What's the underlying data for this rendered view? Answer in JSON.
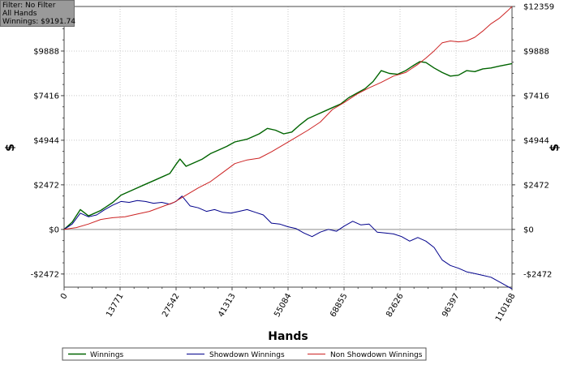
{
  "info_box": {
    "filter_line": "Filter: No Filter",
    "hands_line": "All Hands",
    "winnings_line": "Winnings: $9191.74"
  },
  "colors": {
    "winnings": "#006400",
    "showdown": "#00008b",
    "non_showdown": "#cc2222",
    "grid": "#c8c8c8",
    "zero_line": "#8c8c8c"
  },
  "chart_data": {
    "type": "line",
    "title": "",
    "xlabel": "Hands",
    "ylabel": "$",
    "y2label": "$",
    "xlim": [
      0,
      110168
    ],
    "ylim": [
      -3200,
      12359
    ],
    "x_ticks": [
      0,
      13771,
      27542,
      41313,
      55084,
      68855,
      82626,
      96397,
      110168
    ],
    "x_tick_labels": [
      "0",
      "13771",
      "27542",
      "41313",
      "55084",
      "68855",
      "82626",
      "96397",
      "110168"
    ],
    "y_ticks": [
      -2472,
      0,
      2472,
      4944,
      7416,
      9888,
      12359
    ],
    "y_tick_labels": [
      "-$2472",
      "$0",
      "$2472",
      "$4944",
      "$7416",
      "$9888",
      "$12359"
    ],
    "grid": true,
    "legend_position": "bottom",
    "series": [
      {
        "name": "Winnings",
        "x": [
          0,
          2000,
          4000,
          6000,
          9000,
          12000,
          14000,
          17000,
          20000,
          22000,
          24000,
          26000,
          27500,
          28500,
          30000,
          32000,
          34000,
          36000,
          38000,
          40000,
          42000,
          45000,
          48000,
          50000,
          52000,
          54000,
          56000,
          58000,
          60000,
          62000,
          64000,
          66000,
          68000,
          70000,
          72000,
          74000,
          76000,
          78000,
          80000,
          82000,
          84000,
          86000,
          87500,
          89000,
          91000,
          93000,
          95000,
          97000,
          99000,
          101000,
          103000,
          105000,
          107000,
          110168
        ],
        "values": [
          0,
          400,
          1100,
          750,
          1050,
          1500,
          1900,
          2200,
          2500,
          2700,
          2900,
          3100,
          3600,
          3900,
          3500,
          3700,
          3900,
          4200,
          4400,
          4600,
          4850,
          5000,
          5300,
          5600,
          5500,
          5300,
          5400,
          5800,
          6150,
          6350,
          6550,
          6750,
          6950,
          7300,
          7550,
          7800,
          8200,
          8800,
          8650,
          8600,
          8800,
          9100,
          9300,
          9250,
          8950,
          8700,
          8500,
          8550,
          8800,
          8750,
          8900,
          8950,
          9050,
          9191.74
        ]
      },
      {
        "name": "Showdown Winnings",
        "x": [
          0,
          2000,
          4000,
          6000,
          8000,
          10000,
          12000,
          14000,
          16000,
          18000,
          20000,
          22000,
          24000,
          26000,
          27500,
          29000,
          31000,
          33000,
          35000,
          37000,
          39000,
          41000,
          43000,
          45000,
          47000,
          49000,
          51000,
          53000,
          55000,
          57000,
          59000,
          61000,
          63000,
          65000,
          67000,
          69000,
          71000,
          73000,
          75000,
          77000,
          79000,
          81000,
          83000,
          85000,
          87000,
          89000,
          91000,
          93000,
          95000,
          97000,
          99000,
          101000,
          103000,
          105000,
          107000,
          110168
        ],
        "values": [
          0,
          300,
          900,
          700,
          800,
          1100,
          1350,
          1550,
          1500,
          1600,
          1550,
          1450,
          1500,
          1400,
          1550,
          1850,
          1300,
          1200,
          1000,
          1100,
          950,
          900,
          1000,
          1100,
          950,
          800,
          350,
          300,
          150,
          50,
          -200,
          -400,
          -150,
          0,
          -100,
          200,
          450,
          250,
          300,
          -150,
          -200,
          -250,
          -400,
          -650,
          -450,
          -650,
          -1000,
          -1700,
          -2000,
          -2150,
          -2350,
          -2450,
          -2550,
          -2650,
          -2900,
          -3300
        ]
      },
      {
        "name": "Non Showdown Winnings",
        "x": [
          0,
          3000,
          6000,
          9000,
          12000,
          15000,
          18000,
          21000,
          24000,
          27000,
          30000,
          33000,
          36000,
          39000,
          42000,
          45000,
          48000,
          51000,
          54000,
          57000,
          60000,
          63000,
          66000,
          69000,
          72000,
          75000,
          78000,
          81000,
          84000,
          87000,
          89000,
          91000,
          93000,
          95000,
          97000,
          99000,
          101000,
          103000,
          105000,
          107000,
          109000,
          110168
        ],
        "values": [
          0,
          100,
          300,
          550,
          650,
          700,
          850,
          1000,
          1250,
          1500,
          1900,
          2300,
          2650,
          3150,
          3650,
          3850,
          3950,
          4300,
          4700,
          5100,
          5500,
          5950,
          6650,
          7050,
          7500,
          7850,
          8150,
          8500,
          8700,
          9150,
          9500,
          9900,
          10350,
          10450,
          10400,
          10450,
          10650,
          11000,
          11400,
          11700,
          12100,
          12359
        ]
      }
    ]
  }
}
